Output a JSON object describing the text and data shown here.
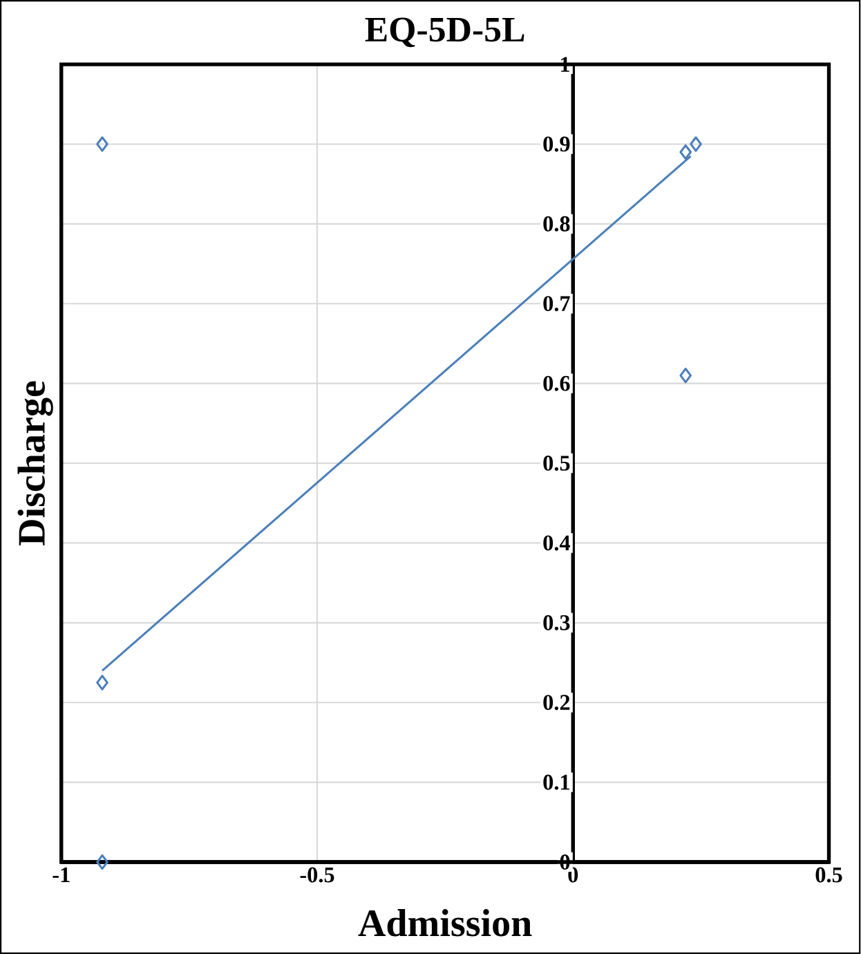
{
  "chart_data": {
    "type": "scatter",
    "title": "EQ-5D-5L",
    "xlabel": "Admission",
    "ylabel": "Discharge",
    "series": [
      {
        "type": "scatter",
        "color": "#4a7ebb",
        "marker": "diamond",
        "x": [
          -0.92,
          -0.92,
          -0.92,
          0.22,
          0.24,
          0.22
        ],
        "values": [
          0.9,
          0.225,
          0,
          0.89,
          0.9,
          0.61
        ]
      },
      {
        "type": "line",
        "color": "#4a7ebb",
        "marker": "none",
        "x": [
          -0.92,
          0.23
        ],
        "values": [
          0.24,
          0.885
        ]
      }
    ],
    "xlim": [
      -1,
      0.5
    ],
    "xticks": [
      -1,
      -0.5,
      0,
      0.5
    ],
    "ylim": [
      0,
      1
    ],
    "yticks": [
      0,
      0.1,
      0.2,
      0.3,
      0.4,
      0.5,
      0.6,
      0.7,
      0.8,
      0.9,
      1
    ],
    "grid": true
  }
}
